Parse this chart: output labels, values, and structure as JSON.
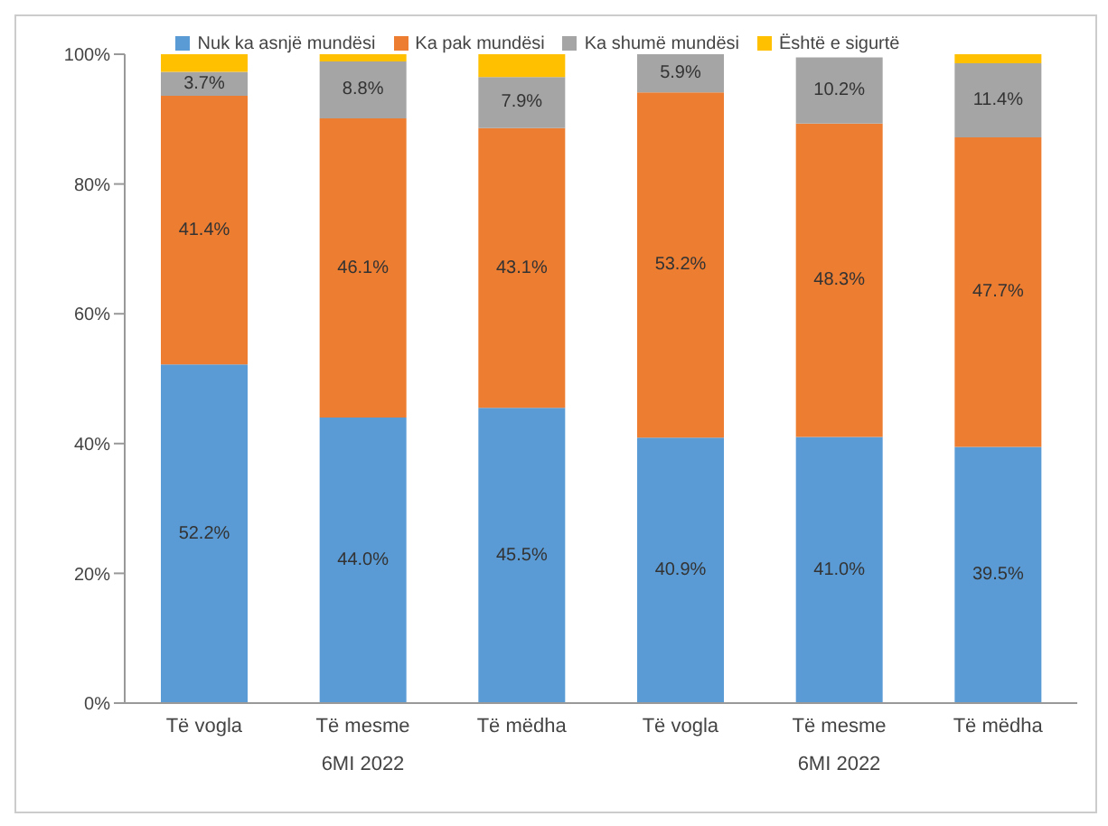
{
  "chart_data": {
    "type": "bar",
    "stacked": true,
    "categories": [
      "Të vogla",
      "Të mesme",
      "Të mëdha",
      "Të vogla",
      "Të mesme",
      "Të mëdha"
    ],
    "series": [
      {
        "name": "Nuk ka asnjë mundësi",
        "color": "#5b9bd5",
        "values": [
          52.2,
          44.0,
          45.5,
          40.9,
          41.0,
          39.5
        ],
        "value_labels": [
          "52.2%",
          "44.0%",
          "45.5%",
          "40.9%",
          "41.0%",
          "39.5%"
        ]
      },
      {
        "name": "Ka pak mundësi",
        "color": "#ed7d31",
        "values": [
          41.4,
          46.1,
          43.1,
          53.2,
          48.3,
          47.7
        ],
        "value_labels": [
          "41.4%",
          "46.1%",
          "43.1%",
          "53.2%",
          "48.3%",
          "47.7%"
        ]
      },
      {
        "name": "Ka shumë mundësi",
        "color": "#a5a5a5",
        "values": [
          3.7,
          8.8,
          7.9,
          5.9,
          10.2,
          11.4
        ],
        "value_labels": [
          "3.7%",
          "8.8%",
          "7.9%",
          "5.9%",
          "10.2%",
          "11.4%"
        ]
      },
      {
        "name": "Është e sigurtë",
        "color": "#ffc000",
        "values": [
          2.7,
          1.1,
          3.5,
          0,
          0,
          1.4
        ]
      }
    ],
    "ylim": [
      0,
      100
    ],
    "yticks": [
      {
        "value": 0,
        "label": "0%"
      },
      {
        "value": 20,
        "label": "20%"
      },
      {
        "value": 40,
        "label": "40%"
      },
      {
        "value": 60,
        "label": "60%"
      },
      {
        "value": 80,
        "label": "80%"
      },
      {
        "value": 100,
        "label": "100%"
      }
    ],
    "legend": "top",
    "annotations": [
      "6MI 2022",
      "6MI 2022"
    ]
  }
}
